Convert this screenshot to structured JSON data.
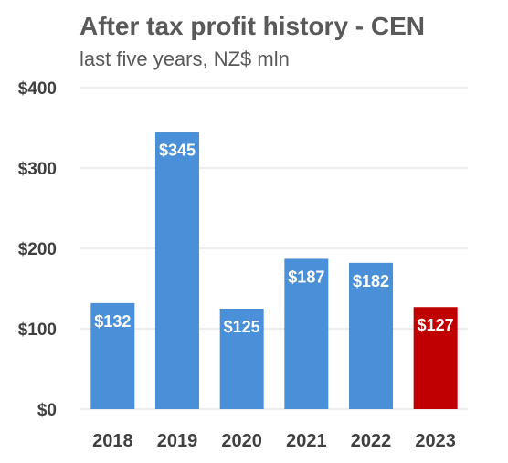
{
  "chart_data": {
    "type": "bar",
    "title": "After tax profit history - CEN",
    "subtitle": "last five years, NZ$ mln",
    "categories": [
      "2018",
      "2019",
      "2020",
      "2021",
      "2022",
      "2023"
    ],
    "values": [
      132,
      345,
      125,
      187,
      182,
      127
    ],
    "data_labels": [
      "$132",
      "$345",
      "$125",
      "$187",
      "$182",
      "$127"
    ],
    "y_tick_labels": [
      "$0",
      "$100",
      "$200",
      "$300",
      "$400"
    ],
    "y_ticks": [
      0,
      100,
      200,
      300,
      400
    ],
    "ylim": [
      0,
      400
    ],
    "grid": true,
    "legend": false,
    "colors": {
      "default_bar": "#4a90d9",
      "highlight_bar": "#c00000",
      "highlight_category": "2023"
    }
  }
}
